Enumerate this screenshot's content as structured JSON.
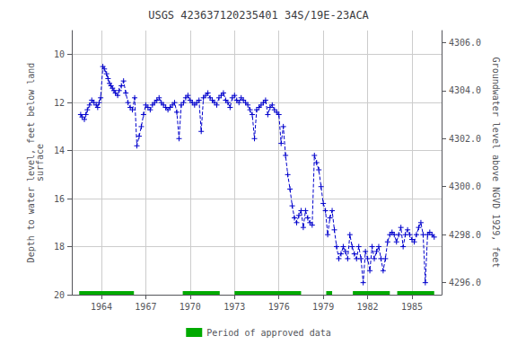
{
  "chart_data": {
    "type": "line",
    "title": "USGS 423637120235401 34S/19E-23ACA",
    "ylabel": "Depth to water level, feet below land\nsurface",
    "y2label": "Groundwater level above NGVD 1929, feet",
    "xlim": [
      1962.0,
      1987.0
    ],
    "xticks": [
      1964,
      1967,
      1970,
      1973,
      1976,
      1979,
      1982,
      1985
    ],
    "ylim": [
      20.0,
      9.0
    ],
    "yticks": [
      10.0,
      12.0,
      14.0,
      16.0,
      18.0,
      20.0
    ],
    "y2lim": [
      4295.5,
      4306.5
    ],
    "y2ticks": [
      {
        "value": 4296.0,
        "label": "4296.0"
      },
      {
        "value": 4298.0,
        "label": "4298.0"
      },
      {
        "value": 4300.0,
        "label": "4300.0"
      },
      {
        "value": 4302.0,
        "label": "4302.0"
      },
      {
        "value": 4304.0,
        "label": "4304.0"
      },
      {
        "value": 4306.0,
        "label": "4306.0"
      }
    ],
    "grid": true,
    "legend": "bottom",
    "x": [
      1962.6,
      1962.7,
      1962.85,
      1962.95,
      1963.05,
      1963.2,
      1963.35,
      1963.5,
      1963.65,
      1963.75,
      1963.85,
      1963.95,
      1964.1,
      1964.2,
      1964.35,
      1964.45,
      1964.55,
      1964.65,
      1964.75,
      1964.85,
      1964.95,
      1965.1,
      1965.2,
      1965.35,
      1965.5,
      1965.65,
      1965.8,
      1965.95,
      1966.1,
      1966.25,
      1966.4,
      1966.55,
      1966.7,
      1966.85,
      1967.0,
      1967.15,
      1967.3,
      1967.45,
      1967.6,
      1967.75,
      1967.9,
      1968.05,
      1968.2,
      1968.35,
      1968.5,
      1968.65,
      1968.8,
      1968.95,
      1969.1,
      1969.25,
      1969.4,
      1969.55,
      1969.7,
      1969.85,
      1970.0,
      1970.15,
      1970.3,
      1970.45,
      1970.6,
      1970.75,
      1970.9,
      1971.05,
      1971.2,
      1971.35,
      1971.5,
      1971.65,
      1971.8,
      1971.95,
      1972.1,
      1972.25,
      1972.4,
      1972.55,
      1972.7,
      1972.85,
      1973.0,
      1973.15,
      1973.3,
      1973.45,
      1973.6,
      1973.75,
      1973.9,
      1974.05,
      1974.2,
      1974.35,
      1974.5,
      1974.65,
      1974.8,
      1974.95,
      1975.1,
      1975.25,
      1975.4,
      1975.55,
      1975.7,
      1975.85,
      1976.0,
      1976.15,
      1976.3,
      1976.45,
      1976.6,
      1976.75,
      1976.9,
      1977.05,
      1977.2,
      1977.35,
      1977.5,
      1977.65,
      1977.8,
      1977.95,
      1978.1,
      1978.25,
      1978.4,
      1978.55,
      1978.7,
      1978.85,
      1979.0,
      1979.15,
      1979.3,
      1979.45,
      1979.6,
      1979.75,
      1979.9,
      1980.05,
      1980.2,
      1980.35,
      1980.5,
      1980.65,
      1980.8,
      1980.95,
      1981.1,
      1981.25,
      1981.4,
      1981.55,
      1981.7,
      1981.85,
      1982.0,
      1982.15,
      1982.3,
      1982.45,
      1982.6,
      1982.75,
      1982.9,
      1983.05,
      1983.2,
      1983.35,
      1983.5,
      1983.65,
      1983.8,
      1983.95,
      1984.1,
      1984.25,
      1984.4,
      1984.55,
      1984.7,
      1984.85,
      1985.0,
      1985.15,
      1985.3,
      1985.45,
      1985.6,
      1985.75,
      1985.9,
      1986.05,
      1986.2,
      1986.35,
      1986.5
    ],
    "series": [
      {
        "color": "#0000cc",
        "marker": "+",
        "line_style": "dashed",
        "values": [
          12.5,
          12.6,
          12.7,
          12.5,
          12.3,
          12.1,
          11.9,
          12.0,
          12.1,
          12.2,
          12.0,
          11.8,
          10.5,
          10.6,
          10.8,
          11.0,
          11.2,
          11.3,
          11.4,
          11.5,
          11.6,
          11.7,
          11.5,
          11.3,
          11.1,
          11.6,
          12.0,
          12.2,
          12.3,
          11.8,
          13.8,
          13.4,
          13.0,
          12.5,
          12.1,
          12.2,
          12.3,
          12.1,
          12.0,
          11.9,
          11.8,
          12.0,
          12.1,
          12.2,
          12.3,
          12.2,
          12.1,
          12.0,
          12.4,
          13.5,
          12.1,
          12.0,
          11.8,
          11.7,
          11.9,
          12.0,
          12.1,
          12.0,
          11.9,
          13.2,
          11.8,
          11.7,
          11.6,
          11.8,
          11.9,
          12.0,
          12.1,
          11.8,
          11.7,
          11.6,
          11.9,
          12.0,
          12.2,
          11.8,
          11.7,
          11.9,
          12.0,
          11.8,
          11.9,
          12.0,
          12.1,
          12.3,
          12.5,
          13.5,
          12.3,
          12.2,
          12.1,
          12.0,
          11.9,
          12.5,
          12.2,
          12.1,
          12.3,
          12.4,
          12.5,
          13.7,
          13.0,
          14.2,
          15.0,
          15.6,
          16.3,
          16.8,
          17.0,
          16.7,
          16.5,
          17.2,
          16.5,
          16.8,
          17.0,
          17.1,
          14.2,
          14.5,
          14.8,
          15.5,
          16.2,
          16.5,
          17.5,
          16.8,
          16.5,
          17.3,
          18.0,
          18.5,
          18.3,
          18.0,
          18.2,
          18.5,
          17.5,
          18.0,
          18.3,
          18.5,
          18.0,
          18.5,
          19.5,
          18.2,
          18.5,
          19.0,
          18.0,
          18.5,
          18.2,
          18.0,
          18.5,
          19.0,
          18.5,
          17.8,
          17.5,
          17.4,
          17.5,
          17.8,
          17.5,
          17.2,
          18.0,
          17.5,
          17.3,
          17.5,
          17.7,
          17.8,
          17.5,
          17.2,
          17.0,
          17.5,
          19.5,
          17.5,
          17.4,
          17.5,
          17.6
        ]
      }
    ],
    "approved_periods": {
      "name": "Period of approved data",
      "color": "#00aa00",
      "level": 20.0,
      "periods": [
        [
          1962.5,
          1966.2
        ],
        [
          1969.5,
          1972.0
        ],
        [
          1973.0,
          1977.5
        ],
        [
          1979.2,
          1979.6
        ],
        [
          1981.0,
          1983.5
        ],
        [
          1984.0,
          1986.5
        ]
      ]
    }
  }
}
